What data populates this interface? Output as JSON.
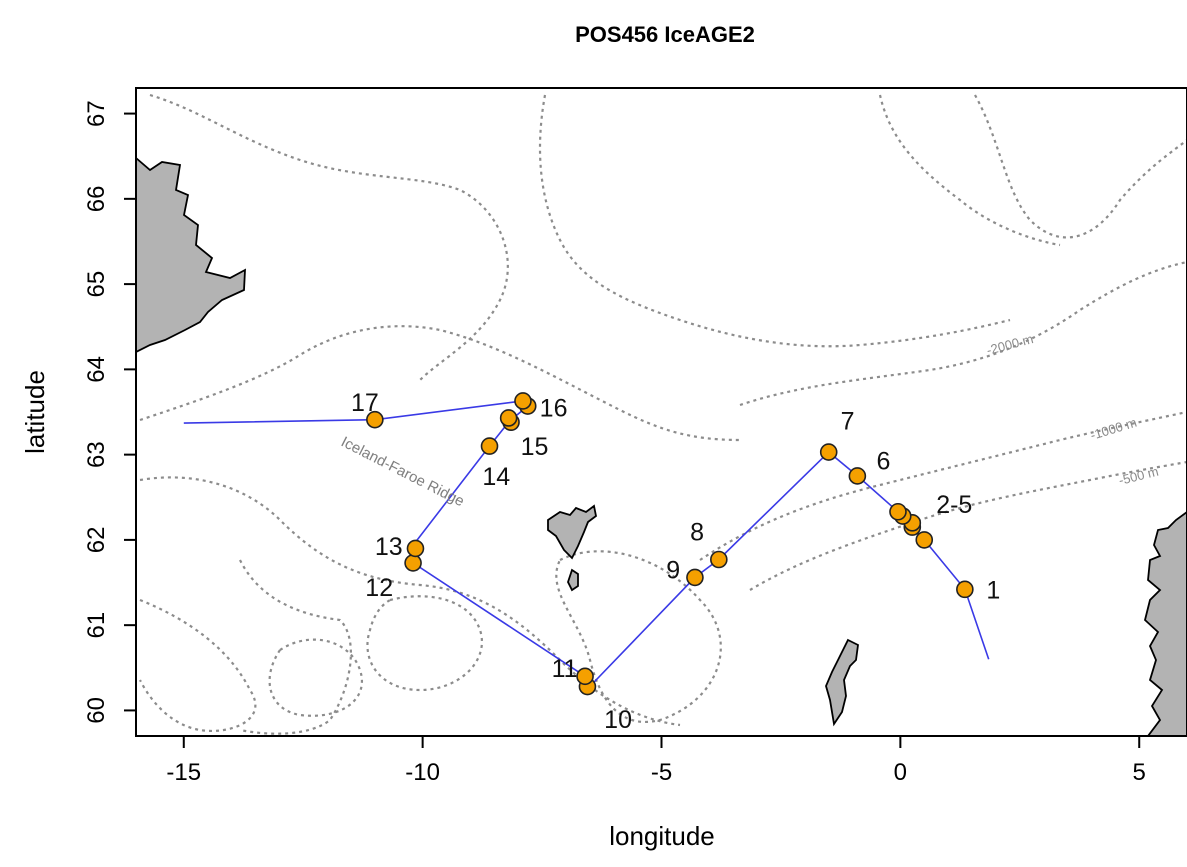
{
  "title": "POS456   IceAGE2",
  "axes": {
    "xlabel": "longitude",
    "ylabel": "latitude",
    "xlim": [
      -16,
      6
    ],
    "ylim": [
      59.7,
      67.3
    ],
    "xticks": [
      -15,
      -10,
      -5,
      0,
      5
    ],
    "yticks": [
      60,
      61,
      62,
      63,
      64,
      65,
      66,
      67
    ],
    "xtick_labels": [
      "-15",
      "-10",
      "-5",
      "0",
      "5"
    ],
    "ytick_labels": [
      "60",
      "61",
      "62",
      "63",
      "64",
      "65",
      "66",
      "67"
    ]
  },
  "annotations": {
    "ridge": "Iceland-Faroe Ridge",
    "depth_2000": "-2000 m",
    "depth_1000": "-1000 m",
    "depth_500": "-500 m"
  },
  "colors": {
    "track": "#3a3ae6",
    "station_fill": "#f5a000",
    "land": "#b3b3b3",
    "contour": "#8c8c8c"
  },
  "chart_data": {
    "type": "map",
    "track": {
      "lon": [
        1.85,
        1.35,
        0.5,
        0.25,
        0.1,
        -0.05,
        -0.9,
        -1.5,
        -3.8,
        -4.3,
        -6.5,
        -6.6,
        -10.2,
        -10.25,
        -8.6,
        -8.2,
        -8.1,
        -7.8,
        -7.9,
        -11.0,
        -15.0
      ],
      "lat": [
        60.6,
        61.42,
        62.0,
        62.15,
        62.28,
        62.33,
        62.75,
        63.03,
        61.77,
        61.56,
        60.28,
        60.4,
        61.73,
        61.9,
        63.1,
        63.38,
        63.43,
        63.57,
        63.63,
        63.41,
        63.37
      ]
    },
    "stations": [
      {
        "lon": 1.35,
        "lat": 61.42
      },
      {
        "lon": 0.5,
        "lat": 62.0
      },
      {
        "lon": 0.25,
        "lat": 62.15
      },
      {
        "lon": 0.25,
        "lat": 62.2
      },
      {
        "lon": 0.05,
        "lat": 62.28
      },
      {
        "lon": -0.05,
        "lat": 62.33
      },
      {
        "lon": -0.9,
        "lat": 62.75
      },
      {
        "lon": -1.5,
        "lat": 63.03
      },
      {
        "lon": -3.8,
        "lat": 61.77
      },
      {
        "lon": -4.3,
        "lat": 61.56
      },
      {
        "lon": -6.55,
        "lat": 60.28
      },
      {
        "lon": -6.6,
        "lat": 60.4
      },
      {
        "lon": -10.2,
        "lat": 61.73
      },
      {
        "lon": -10.15,
        "lat": 61.9
      },
      {
        "lon": -8.6,
        "lat": 63.1
      },
      {
        "lon": -8.15,
        "lat": 63.38
      },
      {
        "lon": -8.2,
        "lat": 63.43
      },
      {
        "lon": -7.8,
        "lat": 63.57
      },
      {
        "lon": -7.9,
        "lat": 63.63
      },
      {
        "lon": -11.0,
        "lat": 63.41
      }
    ],
    "station_labels": [
      {
        "text": "1",
        "lon": 1.8,
        "lat": 61.42
      },
      {
        "text": "2-5",
        "lon": 0.75,
        "lat": 62.42
      },
      {
        "text": "6",
        "lon": -0.5,
        "lat": 62.93
      },
      {
        "text": "7",
        "lon": -1.25,
        "lat": 63.4
      },
      {
        "text": "8",
        "lon": -4.4,
        "lat": 62.1
      },
      {
        "text": "9",
        "lon": -4.9,
        "lat": 61.65
      },
      {
        "text": "10",
        "lon": -6.2,
        "lat": 59.9
      },
      {
        "text": "11",
        "lon": -7.3,
        "lat": 60.5
      },
      {
        "text": "12",
        "lon": -11.2,
        "lat": 61.45
      },
      {
        "text": "13",
        "lon": -11.0,
        "lat": 61.93
      },
      {
        "text": "14",
        "lon": -8.75,
        "lat": 62.75
      },
      {
        "text": "15",
        "lon": -7.95,
        "lat": 63.1
      },
      {
        "text": "16",
        "lon": -7.55,
        "lat": 63.55
      },
      {
        "text": "17",
        "lon": -11.5,
        "lat": 63.62
      }
    ]
  }
}
